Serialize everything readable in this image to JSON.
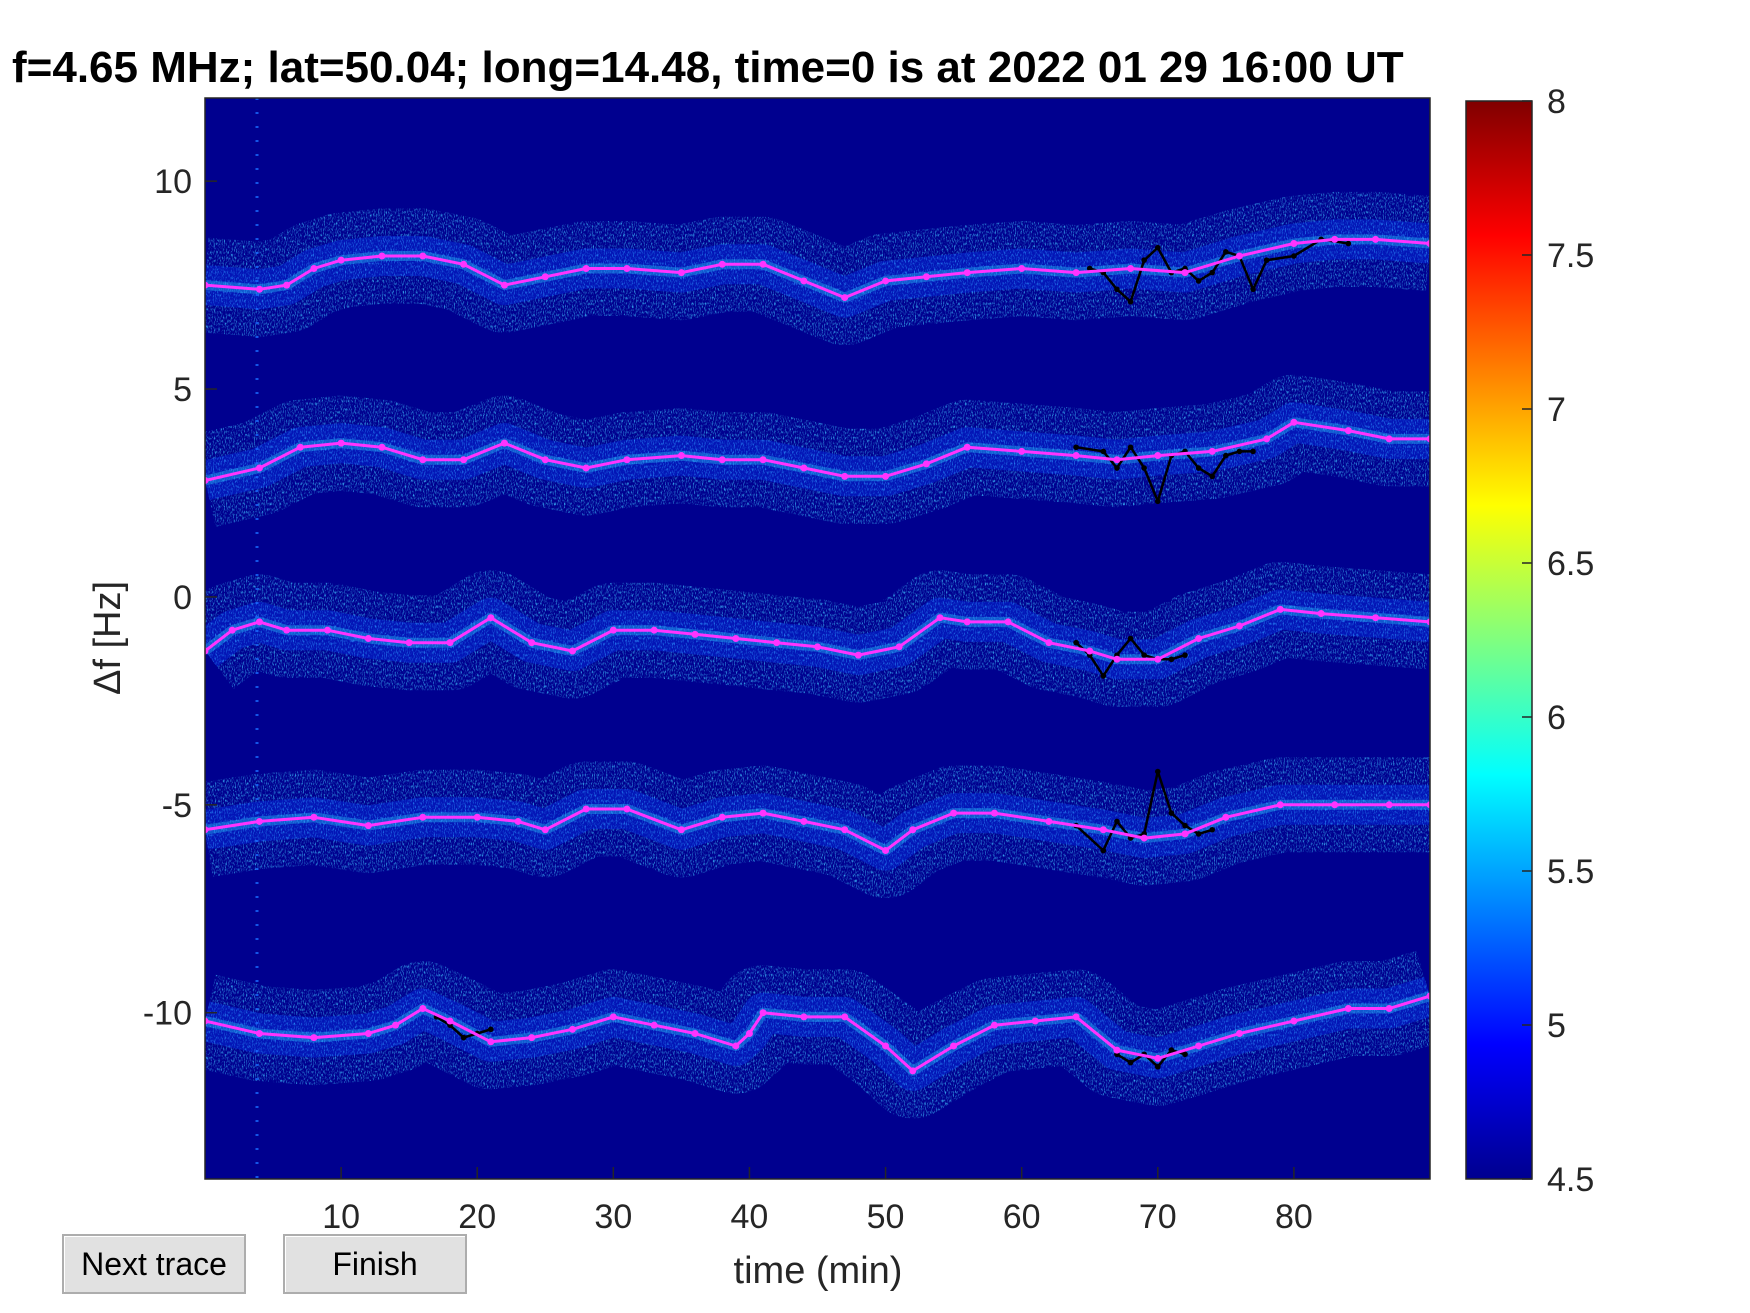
{
  "chart_data": {
    "type": "heatmap",
    "title": "f=4.65 MHz;  lat=50.04; long=14.48, time=0 is at 2022 01 29 16:00 UT",
    "xlabel": "time (min)",
    "ylabel": "Δf [Hz]",
    "xlim": [
      0,
      90
    ],
    "ylim": [
      -14,
      12
    ],
    "x_ticks": [
      "10",
      "20",
      "30",
      "40",
      "50",
      "60",
      "70",
      "80"
    ],
    "x_tick_values": [
      10,
      20,
      30,
      40,
      50,
      60,
      70,
      80
    ],
    "y_ticks": [
      "10",
      "5",
      "0",
      "-5",
      "-10"
    ],
    "y_tick_values": [
      10,
      5,
      0,
      -5,
      -10
    ],
    "colorbar": {
      "min": 4.5,
      "max": 8,
      "ticks": [
        "8",
        "7.5",
        "7",
        "6.5",
        "6",
        "5.5",
        "5",
        "4.5"
      ],
      "tick_values": [
        8,
        7.5,
        7,
        6.5,
        6,
        5.5,
        5,
        4.5
      ],
      "colormap": "jet"
    },
    "background_color": "#00008f",
    "trace_color": "#ff33ff",
    "raw_trace_color": "#000000",
    "traces": [
      {
        "x": [
          0,
          4,
          6,
          8,
          10,
          13,
          16,
          19,
          22,
          25,
          28,
          31,
          35,
          38,
          41,
          44,
          47,
          50,
          53,
          56,
          60,
          64,
          68,
          72,
          76,
          80,
          83,
          86,
          90
        ],
        "y": [
          7.5,
          7.4,
          7.5,
          7.9,
          8.1,
          8.2,
          8.2,
          8.0,
          7.5,
          7.7,
          7.9,
          7.9,
          7.8,
          8.0,
          8.0,
          7.6,
          7.2,
          7.6,
          7.7,
          7.8,
          7.9,
          7.8,
          7.9,
          7.8,
          8.2,
          8.5,
          8.6,
          8.6,
          8.5
        ]
      },
      {
        "x": [
          0,
          4,
          7,
          10,
          13,
          16,
          19,
          22,
          25,
          28,
          31,
          35,
          38,
          41,
          44,
          47,
          50,
          53,
          56,
          60,
          64,
          67,
          70,
          74,
          78,
          80,
          84,
          87,
          90
        ],
        "y": [
          2.8,
          3.1,
          3.6,
          3.7,
          3.6,
          3.3,
          3.3,
          3.7,
          3.3,
          3.1,
          3.3,
          3.4,
          3.3,
          3.3,
          3.1,
          2.9,
          2.9,
          3.2,
          3.6,
          3.5,
          3.4,
          3.3,
          3.4,
          3.5,
          3.8,
          4.2,
          4.0,
          3.8,
          3.8
        ]
      },
      {
        "x": [
          0,
          2,
          4,
          6,
          9,
          12,
          15,
          18,
          21,
          24,
          27,
          30,
          33,
          36,
          39,
          42,
          45,
          48,
          51,
          54,
          56,
          59,
          62,
          65,
          67,
          70,
          73,
          76,
          79,
          82,
          86,
          90
        ],
        "y": [
          -1.3,
          -0.8,
          -0.6,
          -0.8,
          -0.8,
          -1.0,
          -1.1,
          -1.1,
          -0.5,
          -1.1,
          -1.3,
          -0.8,
          -0.8,
          -0.9,
          -1.0,
          -1.1,
          -1.2,
          -1.4,
          -1.2,
          -0.5,
          -0.6,
          -0.6,
          -1.1,
          -1.3,
          -1.5,
          -1.5,
          -1.0,
          -0.7,
          -0.3,
          -0.4,
          -0.5,
          -0.6
        ]
      },
      {
        "x": [
          0,
          4,
          8,
          12,
          16,
          20,
          23,
          25,
          28,
          31,
          35,
          38,
          41,
          44,
          47,
          50,
          52,
          55,
          58,
          62,
          66,
          69,
          72,
          75,
          79,
          83,
          87,
          90
        ],
        "y": [
          -5.6,
          -5.4,
          -5.3,
          -5.5,
          -5.3,
          -5.3,
          -5.4,
          -5.6,
          -5.1,
          -5.1,
          -5.6,
          -5.3,
          -5.2,
          -5.4,
          -5.6,
          -6.1,
          -5.6,
          -5.2,
          -5.2,
          -5.4,
          -5.6,
          -5.8,
          -5.7,
          -5.3,
          -5.0,
          -5.0,
          -5.0,
          -5.0
        ]
      },
      {
        "x": [
          0,
          4,
          8,
          12,
          14,
          16,
          18,
          21,
          24,
          27,
          30,
          33,
          36,
          39,
          40,
          41,
          44,
          47,
          50,
          52,
          55,
          58,
          61,
          64,
          67,
          70,
          73,
          76,
          80,
          84,
          87,
          90
        ],
        "y": [
          -10.2,
          -10.5,
          -10.6,
          -10.5,
          -10.3,
          -9.9,
          -10.2,
          -10.7,
          -10.6,
          -10.4,
          -10.1,
          -10.3,
          -10.5,
          -10.8,
          -10.5,
          -10.0,
          -10.1,
          -10.1,
          -10.8,
          -11.4,
          -10.8,
          -10.3,
          -10.2,
          -10.1,
          -10.9,
          -11.1,
          -10.8,
          -10.5,
          -10.2,
          -9.9,
          -9.9,
          -9.6
        ]
      }
    ],
    "raw_traces": [
      {
        "x": [
          65,
          66,
          67,
          68,
          69,
          70,
          71,
          72,
          73,
          74,
          75,
          76,
          77,
          78,
          80,
          82,
          84
        ],
        "y": [
          7.9,
          7.8,
          7.4,
          7.1,
          8.1,
          8.4,
          7.8,
          7.9,
          7.6,
          7.8,
          8.3,
          8.2,
          7.4,
          8.1,
          8.2,
          8.6,
          8.5
        ]
      },
      {
        "x": [
          64,
          66,
          67,
          68,
          69,
          70,
          71,
          72,
          73,
          74,
          75,
          76,
          77
        ],
        "y": [
          3.6,
          3.5,
          3.1,
          3.6,
          3.1,
          2.3,
          3.4,
          3.5,
          3.1,
          2.9,
          3.4,
          3.5,
          3.5
        ]
      },
      {
        "x": [
          64,
          65,
          66,
          67,
          68,
          69,
          70,
          71,
          72
        ],
        "y": [
          -1.1,
          -1.4,
          -1.9,
          -1.4,
          -1.0,
          -1.4,
          -1.5,
          -1.5,
          -1.4
        ]
      },
      {
        "x": [
          64,
          66,
          67,
          68,
          69,
          70,
          71,
          72,
          73,
          74
        ],
        "y": [
          -5.5,
          -6.1,
          -5.4,
          -5.8,
          -5.7,
          -4.2,
          -5.2,
          -5.5,
          -5.7,
          -5.6
        ]
      },
      {
        "x": [
          17,
          18,
          19,
          20,
          21
        ],
        "y": [
          -10.1,
          -10.3,
          -10.6,
          -10.5,
          -10.4
        ]
      },
      {
        "x": [
          67,
          68,
          69,
          70,
          71,
          72
        ],
        "y": [
          -11.0,
          -11.2,
          -11.0,
          -11.3,
          -10.9,
          -11.0
        ]
      }
    ]
  },
  "buttons": {
    "next_trace": "Next trace",
    "finish": "Finish"
  }
}
